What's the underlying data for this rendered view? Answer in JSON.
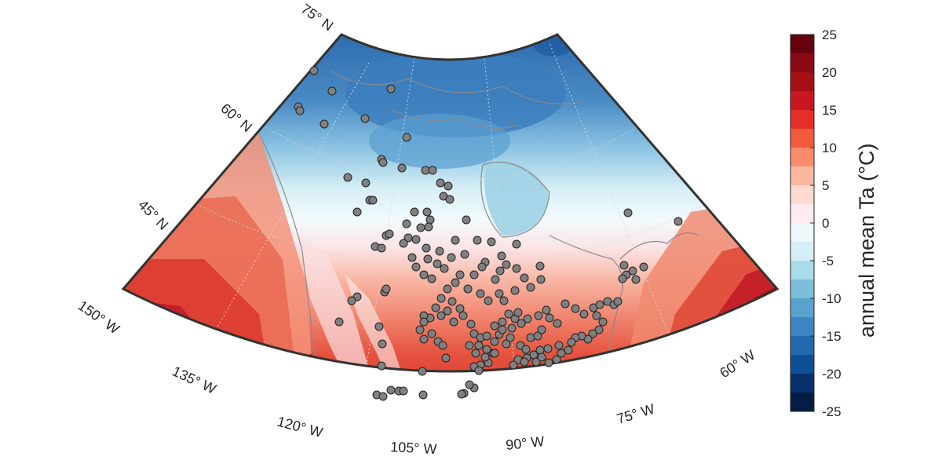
{
  "map": {
    "variable_label": "annual mean Ta (°C)",
    "projection": "conic (North America)",
    "longitude_labels": [
      "150° W",
      "135° W",
      "120° W",
      "105° W",
      "90° W",
      "75° W",
      "60° W"
    ],
    "latitude_labels": [
      "75° N",
      "60° N",
      "45° N"
    ],
    "field_colors": {
      "arctic": "#4a8cc6",
      "subarctic": "#8ec5e3",
      "cool": "#e4f3f9",
      "mild": "#fbe5e8",
      "warm": "#f18a74",
      "hot": "#dd3a2e",
      "very_hot": "#b41825",
      "extreme": "#7a0c17"
    },
    "station_marker_color": "#808080",
    "station_count_shown": "approx. 230 stations"
  },
  "colorbar": {
    "min": -25,
    "max": 25,
    "tick_labels": [
      "25",
      "20",
      "15",
      "10",
      "5",
      "0",
      "-5",
      "-10",
      "-15",
      "-20",
      "-25"
    ],
    "colors_top_to_bottom": [
      "#67000d",
      "#8b0a16",
      "#a50f15",
      "#c8171e",
      "#e32f27",
      "#f2593d",
      "#fb8a6a",
      "#fcb7a0",
      "#fddbd0",
      "#fdecef",
      "#eef8fc",
      "#d6eff6",
      "#a9dbe8",
      "#7dbfda",
      "#5aa2cd",
      "#3d85c2",
      "#2269af",
      "#0d4e95",
      "#08306b",
      "#061d43"
    ]
  }
}
